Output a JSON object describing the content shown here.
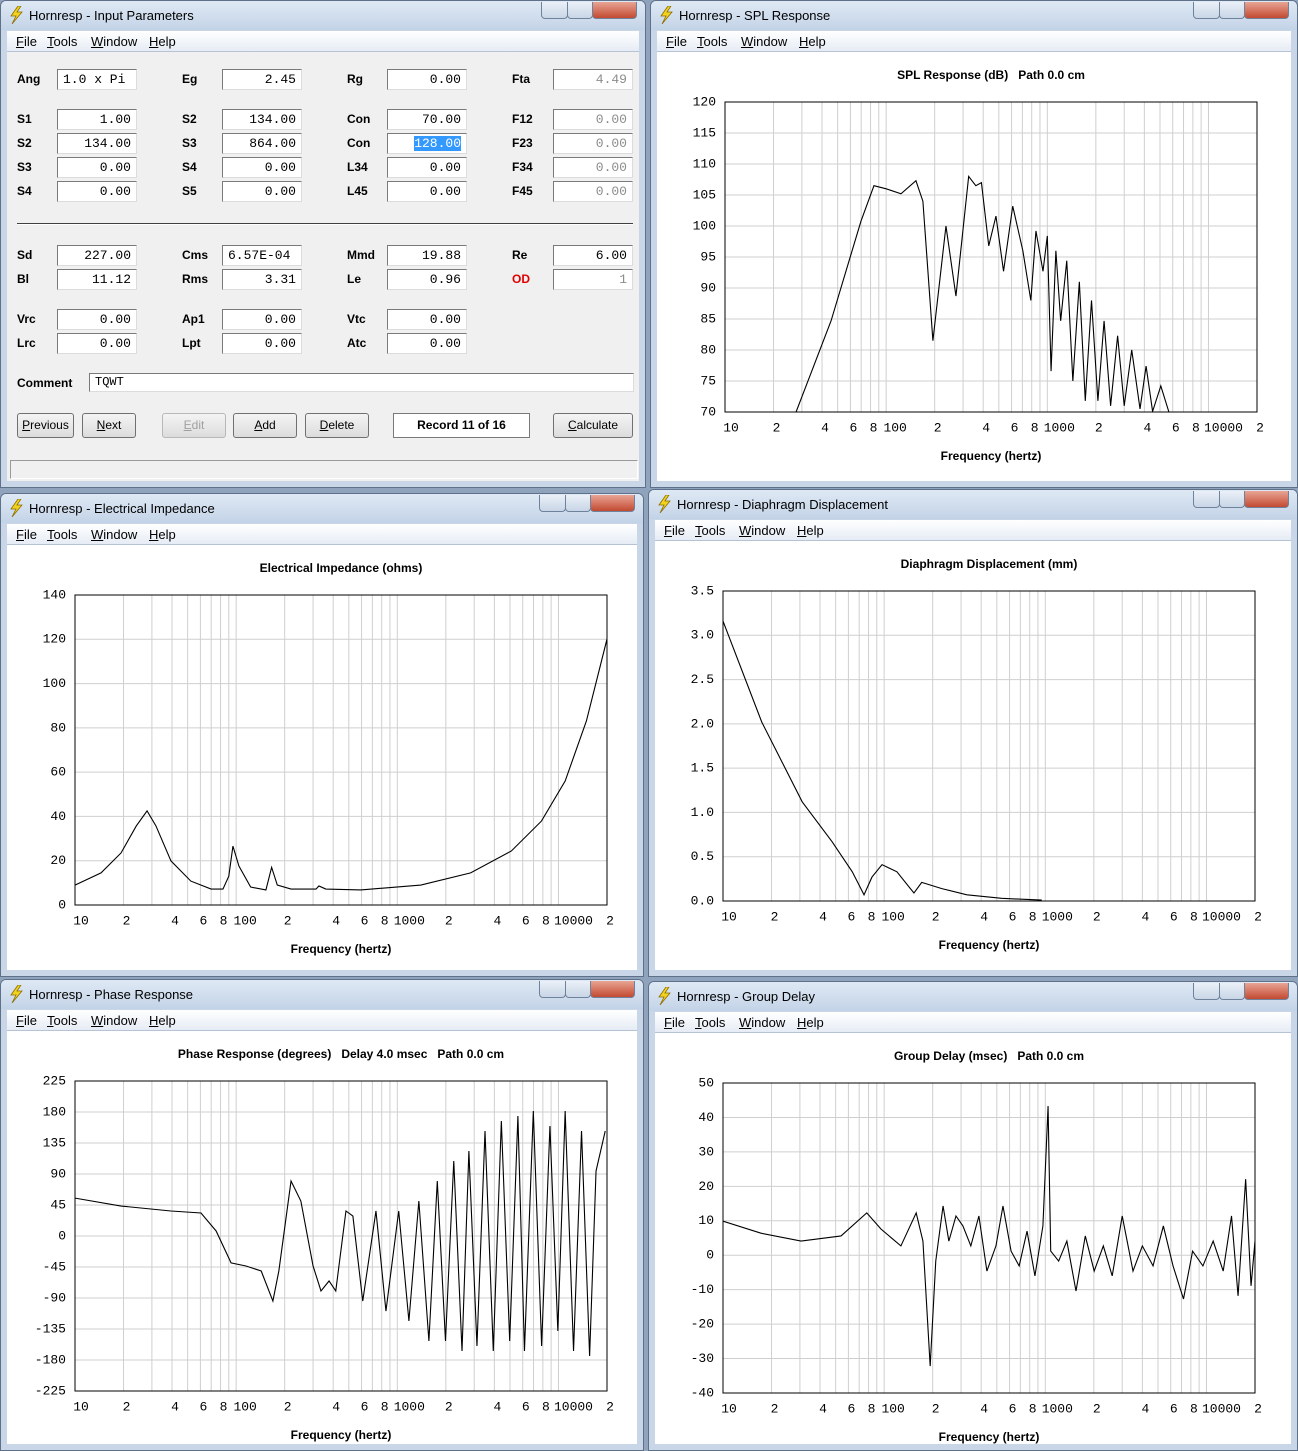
{
  "menu": [
    "File",
    "Tools",
    "Window",
    "Help"
  ],
  "input_window": {
    "title": "Hornresp - Input Parameters",
    "rows": [
      [
        {
          "label": "Ang",
          "value": "1.0 x Pi",
          "align": "left"
        },
        {
          "label": "Eg",
          "value": "2.45"
        },
        {
          "label": "Rg",
          "value": "0.00"
        },
        {
          "label": "Fta",
          "value": "4.49",
          "readonly": true
        }
      ],
      [
        {
          "label": "S1",
          "value": "1.00"
        },
        {
          "label": "S2",
          "value": "134.00"
        },
        {
          "label": "Con",
          "value": "70.00"
        },
        {
          "label": "F12",
          "value": "0.00",
          "readonly": true
        }
      ],
      [
        {
          "label": "S2",
          "value": "134.00"
        },
        {
          "label": "S3",
          "value": "864.00"
        },
        {
          "label": "Con",
          "value": "128.00",
          "selected": true
        },
        {
          "label": "F23",
          "value": "0.00",
          "readonly": true
        }
      ],
      [
        {
          "label": "S3",
          "value": "0.00"
        },
        {
          "label": "S4",
          "value": "0.00"
        },
        {
          "label": "L34",
          "value": "0.00"
        },
        {
          "label": "F34",
          "value": "0.00",
          "readonly": true
        }
      ],
      [
        {
          "label": "S4",
          "value": "0.00"
        },
        {
          "label": "S5",
          "value": "0.00"
        },
        {
          "label": "L45",
          "value": "0.00"
        },
        {
          "label": "F45",
          "value": "0.00",
          "readonly": true
        }
      ],
      [
        {
          "label": "Sd",
          "value": "227.00"
        },
        {
          "label": "Cms",
          "value": "6.57E-04",
          "align": "left"
        },
        {
          "label": "Mmd",
          "value": "19.88"
        },
        {
          "label": "Re",
          "value": "6.00"
        }
      ],
      [
        {
          "label": "Bl",
          "value": "11.12"
        },
        {
          "label": "Rms",
          "value": "3.31"
        },
        {
          "label": "Le",
          "value": "0.96"
        },
        {
          "label": "OD",
          "value": "1",
          "readonly": true,
          "label_color": "#e00000"
        }
      ],
      [
        {
          "label": "Vrc",
          "value": "0.00"
        },
        {
          "label": "Ap1",
          "value": "0.00"
        },
        {
          "label": "Vtc",
          "value": "0.00"
        }
      ],
      [
        {
          "label": "Lrc",
          "value": "0.00"
        },
        {
          "label": "Lpt",
          "value": "0.00"
        },
        {
          "label": "Atc",
          "value": "0.00"
        }
      ]
    ],
    "comment": {
      "label": "Comment",
      "value": "TQWT"
    },
    "buttons": [
      {
        "text": "Previous"
      },
      {
        "text": "Next"
      },
      {
        "text": "Edit",
        "disabled": true
      },
      {
        "text": "Add"
      },
      {
        "text": "Delete"
      },
      {
        "text": "Calculate"
      }
    ],
    "record": "Record 11 of 16"
  },
  "chart_data": [
    {
      "window_title": "Hornresp - SPL Response",
      "type": "line",
      "title": "SPL Response (dB)   Path 0.0 cm",
      "xlabel": "Frequency (hertz)",
      "log_x": true,
      "grid": true,
      "color": "#000000",
      "xlim": [
        10,
        20000
      ],
      "ylim": [
        70,
        120
      ],
      "xticks": [
        10,
        {
          "value": 20,
          "label": "2"
        },
        {
          "value": 40,
          "label": "4"
        },
        {
          "value": 60,
          "label": "6"
        },
        {
          "value": 80,
          "label": "8"
        },
        100,
        {
          "value": 200,
          "label": "2"
        },
        {
          "value": 400,
          "label": "4"
        },
        {
          "value": 600,
          "label": "6"
        },
        {
          "value": 800,
          "label": "8"
        },
        1000,
        {
          "value": 2000,
          "label": "2"
        },
        {
          "value": 4000,
          "label": "4"
        },
        {
          "value": 6000,
          "label": "6"
        },
        {
          "value": 8000,
          "label": "8"
        },
        10000,
        {
          "value": 20000,
          "label": "2"
        }
      ],
      "xminor": [
        30,
        50,
        70,
        90,
        300,
        500,
        700,
        900,
        3000,
        5000,
        7000,
        9000
      ],
      "yticks": [
        70,
        75,
        80,
        85,
        90,
        95,
        100,
        105,
        110,
        115,
        120
      ],
      "x": [
        27.6,
        45.5,
        69.8,
        84,
        100,
        123.6,
        153,
        169,
        195,
        235,
        271,
        325,
        360,
        390,
        433,
        480,
        535,
        610,
        705,
        790,
        850,
        940,
        1000,
        1055,
        1130,
        1210,
        1320,
        1440,
        1580,
        1720,
        1880,
        2060,
        2250,
        2470,
        2730,
        3000,
        3340,
        3760,
        4100,
        4500,
        5060,
        5680
      ],
      "values": [
        70,
        84.7,
        100.8,
        106.5,
        106,
        105.2,
        107.3,
        104,
        81.5,
        100,
        88.7,
        108,
        106.5,
        107,
        96.8,
        101.6,
        92.7,
        103.2,
        96,
        88,
        99.2,
        92.7,
        98.4,
        76.6,
        96,
        84.7,
        94.4,
        75,
        91,
        71.8,
        88,
        71.8,
        84.7,
        71,
        82.3,
        71,
        80,
        70.5,
        77.4,
        70.1,
        74.2,
        70
      ]
    },
    {
      "window_title": "Hornresp - Electrical Impedance",
      "type": "line",
      "title": "Electrical Impedance (ohms)",
      "xlabel": "Frequency (hertz)",
      "log_x": true,
      "grid": true,
      "color": "#000000",
      "xlim": [
        10,
        20000
      ],
      "ylim": [
        0,
        140
      ],
      "xticks": [
        10,
        {
          "value": 20,
          "label": "2"
        },
        {
          "value": 40,
          "label": "4"
        },
        {
          "value": 60,
          "label": "6"
        },
        {
          "value": 80,
          "label": "8"
        },
        100,
        {
          "value": 200,
          "label": "2"
        },
        {
          "value": 400,
          "label": "4"
        },
        {
          "value": 600,
          "label": "6"
        },
        {
          "value": 800,
          "label": "8"
        },
        1000,
        {
          "value": 2000,
          "label": "2"
        },
        {
          "value": 4000,
          "label": "4"
        },
        {
          "value": 6000,
          "label": "6"
        },
        {
          "value": 8000,
          "label": "8"
        },
        10000,
        {
          "value": 20000,
          "label": "2"
        }
      ],
      "xminor": [
        30,
        50,
        70,
        90,
        300,
        500,
        700,
        900,
        3000,
        5000,
        7000,
        9000
      ],
      "yticks": [
        0,
        20,
        40,
        60,
        80,
        100,
        120,
        140
      ],
      "x": [
        10,
        14.5,
        19.3,
        24,
        28,
        31.8,
        39.4,
        52.3,
        69.9,
        82.8,
        90,
        95.5,
        104,
        123,
        153,
        166,
        180,
        219,
        313,
        326,
        360,
        593,
        1400,
        2850,
        5100,
        7840,
        11000,
        14900,
        20000
      ],
      "values": [
        9,
        14.5,
        23.5,
        35.7,
        42.5,
        35.7,
        19.9,
        10.8,
        7.2,
        7.2,
        13,
        26.6,
        17.6,
        8.1,
        6.8,
        17,
        9,
        7.2,
        7.2,
        8.6,
        7.2,
        6.8,
        9,
        14.5,
        24.4,
        37.9,
        56,
        83.1,
        120.1
      ]
    },
    {
      "window_title": "Hornresp - Diaphragm Displacement",
      "type": "line",
      "title": "Diaphragm Displacement (mm)",
      "xlabel": "Frequency (hertz)",
      "log_x": true,
      "grid": true,
      "color": "#000000",
      "xlim": [
        10,
        20000
      ],
      "ylim": [
        0,
        3.5
      ],
      "xticks": [
        10,
        {
          "value": 20,
          "label": "2"
        },
        {
          "value": 40,
          "label": "4"
        },
        {
          "value": 60,
          "label": "6"
        },
        {
          "value": 80,
          "label": "8"
        },
        100,
        {
          "value": 200,
          "label": "2"
        },
        {
          "value": 400,
          "label": "4"
        },
        {
          "value": 600,
          "label": "6"
        },
        {
          "value": 800,
          "label": "8"
        },
        1000,
        {
          "value": 2000,
          "label": "2"
        },
        {
          "value": 4000,
          "label": "4"
        },
        {
          "value": 6000,
          "label": "6"
        },
        {
          "value": 8000,
          "label": "8"
        },
        10000,
        {
          "value": 20000,
          "label": "2"
        }
      ],
      "xminor": [
        30,
        50,
        70,
        90,
        300,
        500,
        700,
        900,
        3000,
        5000,
        7000,
        9000
      ],
      "yticks": [
        {
          "value": 0,
          "label": "0.0"
        },
        0.5,
        {
          "value": 1,
          "label": "1.0"
        },
        1.5,
        {
          "value": 2,
          "label": "2.0"
        },
        2.5,
        {
          "value": 3,
          "label": "3.0"
        },
        3.5
      ],
      "x": [
        10,
        17.4,
        31,
        47.5,
        63.4,
        75,
        84,
        97,
        120,
        153,
        171,
        228,
        326,
        536,
        950
      ],
      "values": [
        3.16,
        2.02,
        1.12,
        0.67,
        0.33,
        0.07,
        0.27,
        0.41,
        0.33,
        0.09,
        0.21,
        0.14,
        0.07,
        0.03,
        0.01
      ]
    },
    {
      "window_title": "Hornresp - Phase Response",
      "type": "line",
      "title": "Phase Response (degrees)   Delay 4.0 msec   Path 0.0 cm",
      "xlabel": "Frequency (hertz)",
      "log_x": true,
      "grid": true,
      "color": "#000000",
      "xlim": [
        10,
        20000
      ],
      "ylim": [
        -225,
        225
      ],
      "xticks": [
        10,
        {
          "value": 20,
          "label": "2"
        },
        {
          "value": 40,
          "label": "4"
        },
        {
          "value": 60,
          "label": "6"
        },
        {
          "value": 80,
          "label": "8"
        },
        100,
        {
          "value": 200,
          "label": "2"
        },
        {
          "value": 400,
          "label": "4"
        },
        {
          "value": 600,
          "label": "6"
        },
        {
          "value": 800,
          "label": "8"
        },
        1000,
        {
          "value": 2000,
          "label": "2"
        },
        {
          "value": 4000,
          "label": "4"
        },
        {
          "value": 6000,
          "label": "6"
        },
        {
          "value": 8000,
          "label": "8"
        },
        10000,
        {
          "value": 20000,
          "label": "2"
        }
      ],
      "xminor": [
        30,
        50,
        70,
        90,
        300,
        500,
        700,
        900,
        3000,
        5000,
        7000,
        9000
      ],
      "yticks": [
        -225,
        -180,
        -135,
        -90,
        -45,
        0,
        45,
        90,
        135,
        180,
        225
      ],
      "x": [
        10,
        19.3,
        39.4,
        60.5,
        75.1,
        93,
        115,
        143,
        169,
        184,
        219,
        252,
        300,
        336,
        377,
        415,
        480,
        530,
        610,
        737,
        850,
        1020,
        1180,
        1360,
        1570,
        1770,
        1990,
        2240,
        2520,
        2780,
        3120,
        3500,
        3940,
        4420,
        4980,
        5600,
        6150,
        6980,
        7860,
        8850,
        9910,
        11000,
        12400,
        13900,
        15600,
        17100,
        19500
      ],
      "values": [
        55,
        43.5,
        36.3,
        33.4,
        7.3,
        -39,
        -43.5,
        -50.8,
        -94.4,
        -50.8,
        79.8,
        50.8,
        -43.5,
        -79.8,
        -65.3,
        -79.8,
        36.3,
        29,
        -94.4,
        36.3,
        -108.9,
        36.3,
        -123.4,
        50.8,
        -152.4,
        79.8,
        -152.4,
        108.9,
        -166.9,
        123.4,
        -159.7,
        152.4,
        -166.9,
        166.9,
        -152.4,
        174.2,
        -166.9,
        181.5,
        -159.7,
        159.7,
        -137.9,
        181.5,
        -166.9,
        152.4,
        -174.2,
        94.4,
        152.4
      ]
    },
    {
      "window_title": "Hornresp - Group Delay",
      "type": "line",
      "title": "Group Delay (msec)   Path 0.0 cm",
      "xlabel": "Frequency (hertz)",
      "log_x": true,
      "grid": true,
      "color": "#000000",
      "xlim": [
        10,
        20000
      ],
      "ylim": [
        -40,
        50
      ],
      "xticks": [
        10,
        {
          "value": 20,
          "label": "2"
        },
        {
          "value": 40,
          "label": "4"
        },
        {
          "value": 60,
          "label": "6"
        },
        {
          "value": 80,
          "label": "8"
        },
        100,
        {
          "value": 200,
          "label": "2"
        },
        {
          "value": 400,
          "label": "4"
        },
        {
          "value": 600,
          "label": "6"
        },
        {
          "value": 800,
          "label": "8"
        },
        1000,
        {
          "value": 2000,
          "label": "2"
        },
        {
          "value": 4000,
          "label": "4"
        },
        {
          "value": 6000,
          "label": "6"
        },
        {
          "value": 8000,
          "label": "8"
        },
        10000,
        {
          "value": 20000,
          "label": "2"
        }
      ],
      "xminor": [
        30,
        50,
        70,
        90,
        300,
        500,
        700,
        900,
        3000,
        5000,
        7000,
        9000
      ],
      "yticks": [
        -40,
        -30,
        -20,
        -10,
        0,
        10,
        20,
        30,
        40,
        50
      ],
      "x": [
        10,
        17.2,
        30.5,
        54,
        78,
        95.5,
        127,
        158,
        174,
        193,
        209,
        232,
        252,
        279,
        308,
        345,
        387,
        434,
        494,
        546,
        613,
        688,
        770,
        862,
        966,
        1040,
        1080,
        1210,
        1360,
        1550,
        1770,
        2010,
        2290,
        2600,
        3000,
        3500,
        4000,
        4660,
        5400,
        6200,
        7200,
        8200,
        9500,
        11000,
        12700,
        14300,
        15700,
        17500,
        18900,
        20000
      ],
      "values": [
        9.9,
        6.4,
        4.1,
        5.6,
        12.3,
        7.6,
        2.7,
        12.3,
        4.1,
        -32.2,
        -1.7,
        14.3,
        4.1,
        11.4,
        8.5,
        2.7,
        11.4,
        -4.6,
        2.7,
        14.3,
        1.2,
        -3.1,
        7,
        -6,
        8.5,
        43.3,
        1.2,
        -1.7,
        4.1,
        -10.4,
        5.6,
        -4.6,
        2.7,
        -6,
        11.4,
        -4.6,
        2.7,
        -3.1,
        8.5,
        -3.1,
        -12.7,
        1.2,
        -3.1,
        4.1,
        -4.6,
        11.4,
        -11.8,
        22.1,
        -8.9,
        4.1
      ]
    }
  ]
}
